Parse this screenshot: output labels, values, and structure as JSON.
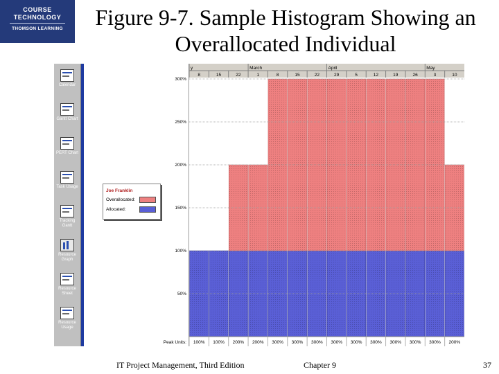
{
  "logo": {
    "line1": "COURSE",
    "line2": "TECHNOLOGY",
    "line3": "THOMSON LEARNING"
  },
  "slide": {
    "title": "Figure 9-7. Sample Histogram Showing an Overallocated Individual"
  },
  "sidebar": {
    "items": [
      {
        "label": "Calendar",
        "icon": "calendar-icon"
      },
      {
        "label": "Gantt Chart",
        "icon": "gantt-chart-icon"
      },
      {
        "label": "PERT Chart",
        "icon": "pert-chart-icon"
      },
      {
        "label": "Task Usage",
        "icon": "task-usage-icon"
      },
      {
        "label": "Tracking Gantt",
        "icon": "tracking-gantt-icon"
      },
      {
        "label": "Resource Graph",
        "icon": "resource-graph-icon"
      },
      {
        "label": "Resource Sheet",
        "icon": "resource-sheet-icon"
      },
      {
        "label": "Resource Usage",
        "icon": "resource-usage-icon"
      }
    ]
  },
  "legend": {
    "resource_name": "Joe Franklin",
    "overallocated_label": "Overallocated:",
    "allocated_label": "Allocated:"
  },
  "chart_data": {
    "type": "bar",
    "months": [
      {
        "label": "y",
        "start": 0,
        "span": 3
      },
      {
        "label": "March",
        "start": 3,
        "span": 4
      },
      {
        "label": "April",
        "start": 7,
        "span": 5
      },
      {
        "label": "May",
        "start": 12,
        "span": 2
      }
    ],
    "categories": [
      "8",
      "15",
      "22",
      "1",
      "8",
      "15",
      "22",
      "29",
      "5",
      "12",
      "19",
      "26",
      "3",
      "10"
    ],
    "series": [
      {
        "name": "Allocated",
        "values": [
          100,
          100,
          100,
          100,
          100,
          100,
          100,
          100,
          100,
          100,
          100,
          100,
          100,
          100
        ]
      },
      {
        "name": "Overallocated",
        "values": [
          0,
          0,
          100,
          100,
          200,
          200,
          200,
          200,
          200,
          200,
          200,
          200,
          200,
          100
        ]
      }
    ],
    "yticks": [
      "50%",
      "100%",
      "150%",
      "200%",
      "250%",
      "300%"
    ],
    "ylim": [
      0,
      300
    ],
    "peak_units_label": "Peak Units:",
    "peak_units": [
      "100%",
      "100%",
      "200%",
      "200%",
      "300%",
      "300%",
      "300%",
      "300%",
      "300%",
      "300%",
      "300%",
      "300%",
      "300%",
      "200%"
    ],
    "colors": {
      "allocated": "#5a5fd6",
      "overallocated": "#ee8080",
      "grid": "#a0a0a0"
    }
  },
  "footer": {
    "book": "IT Project Management, Third Edition",
    "chapter": "Chapter 9",
    "page": "37"
  }
}
